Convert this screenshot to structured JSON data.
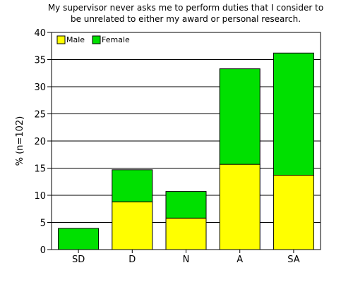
{
  "chart_data": {
    "type": "bar",
    "stacked": true,
    "title_lines": [
      "My supervisor never asks me to perform duties that I consider to",
      "be unrelated to either my award or personal research."
    ],
    "ylabel": "% (n=102)",
    "xlabel": "",
    "categories": [
      "SD",
      "D",
      "N",
      "A",
      "SA"
    ],
    "series": [
      {
        "name": "Male",
        "color": "#ffff00",
        "values": [
          0.0,
          8.8,
          5.8,
          15.7,
          13.7
        ]
      },
      {
        "name": "Female",
        "color": "#00e000",
        "values": [
          3.9,
          5.9,
          4.9,
          17.6,
          22.5
        ]
      }
    ],
    "ylim": [
      0,
      40
    ],
    "yticks": [
      0,
      5,
      10,
      15,
      20,
      25,
      30,
      35,
      40
    ],
    "grid": true,
    "legend": "top-left"
  }
}
